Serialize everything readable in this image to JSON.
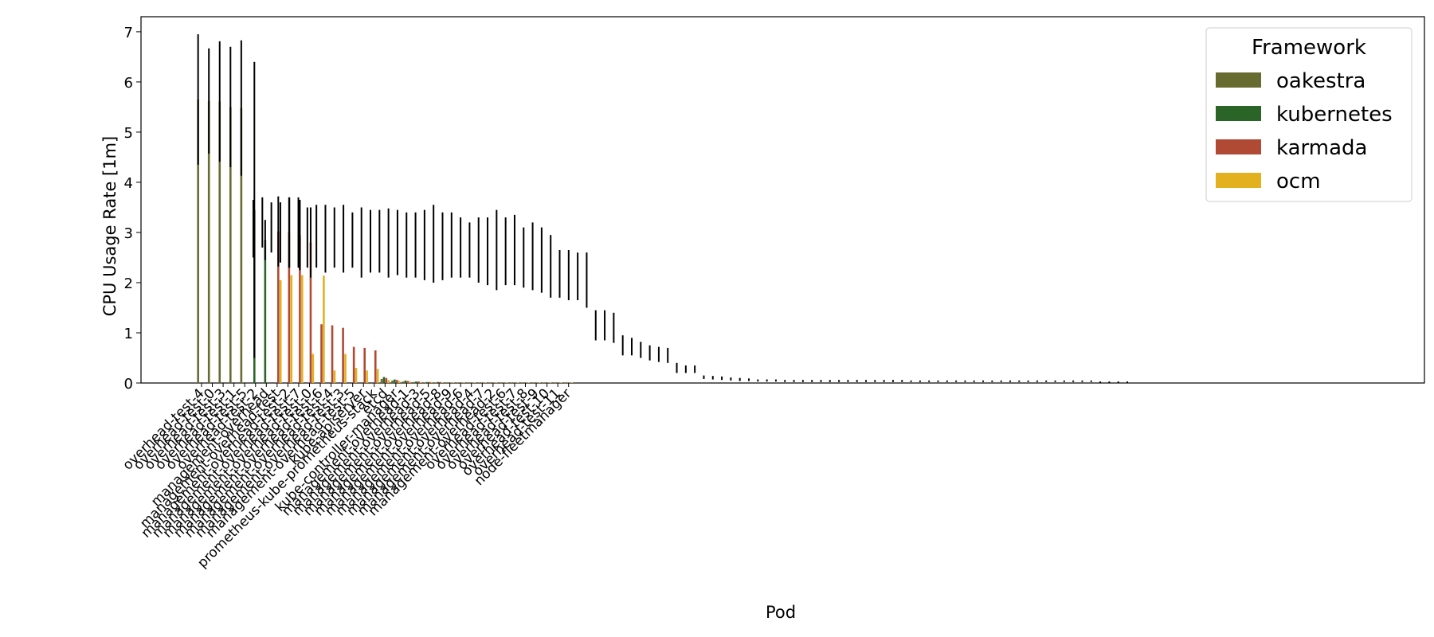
{
  "chart_data": {
    "type": "bar",
    "xlabel": "Pod",
    "ylabel": "CPU Usage Rate [1m]",
    "ylim": [
      0,
      7.3
    ],
    "yticks": [
      0,
      1,
      2,
      3,
      4,
      5,
      6,
      7
    ],
    "grid": false,
    "legend": {
      "title": "Framework",
      "placement": "top-right",
      "entries": [
        "oakestra",
        "kubernetes",
        "karmada",
        "ocm"
      ]
    },
    "colors": {
      "oakestra": "#676b2f",
      "kubernetes": "#2b6427",
      "karmada": "#b04a35",
      "ocm": "#e3b020",
      "errorbar": "#000000"
    },
    "categories": [
      "overhead-test-4",
      "overhead-test-0",
      "overhead-test-3",
      "overhead-test-1",
      "overhead-test-5",
      "overhead-test-2",
      "management-overhead",
      "management-overhead-test",
      "management-overhead-test-2",
      "management-overhead-test-7",
      "management-overhead-test-0",
      "management-overhead-test-6",
      "management-overhead-test-4",
      "management-overhead-test-3",
      "management-overhead-test-5",
      "kube-apiserver",
      "prometheus-kube-prometheus-stack",
      "etcd",
      "kube-controller-manager",
      "management-overhead-1",
      "management-overhead-3",
      "management-overhead-5",
      "management-overhead-8",
      "management-overhead-9",
      "management-overhead-6",
      "management-overhead-4",
      "management-overhead-7",
      "management-overhead-2",
      "overhead-test-6",
      "overhead-test-7",
      "overhead-test-8",
      "overhead-test-9",
      "overhead-test-10",
      "overhead-test-11",
      "node-fleetmanager"
    ],
    "series": [
      {
        "name": "oakestra",
        "values": [
          5.65,
          5.62,
          5.61,
          5.5,
          5.48,
          0,
          0,
          0,
          0,
          0,
          0,
          0,
          0,
          0,
          0,
          0,
          0,
          0.08,
          0.05,
          0.03,
          0.02,
          0.01,
          0.01,
          0.01,
          0.01,
          0.01,
          0.01,
          0.01,
          0.01,
          0.01,
          0.01,
          0.01,
          0.01,
          0.01,
          0.01
        ],
        "err": [
          1.3,
          1.05,
          1.2,
          1.2,
          1.35,
          0,
          0,
          0,
          0,
          0,
          0,
          0,
          0,
          0,
          0,
          0,
          0,
          0,
          0,
          0,
          0,
          0,
          0,
          0,
          0,
          0,
          0,
          0,
          0,
          0,
          0,
          0,
          0,
          0,
          0
        ]
      },
      {
        "name": "kubernetes",
        "values": [
          0,
          0,
          0,
          0,
          0,
          3.45,
          2.85,
          0,
          0,
          0,
          0,
          0,
          0,
          0,
          0,
          0,
          0,
          0.12,
          0.07,
          0.05,
          0.03,
          0.02,
          0.02,
          0.01,
          0.01,
          0.01,
          0.01,
          0.01,
          0.01,
          0.01,
          0.01,
          0.01,
          0.01,
          0.01,
          0.01
        ],
        "err": [
          0,
          0,
          0,
          0,
          0,
          2.95,
          0.4,
          0,
          0,
          0,
          0,
          0,
          0,
          0,
          0,
          0,
          0,
          0,
          0,
          0,
          0,
          0,
          0,
          0,
          0,
          0,
          0,
          0,
          0,
          0,
          0,
          0,
          0,
          0,
          0
        ]
      },
      {
        "name": "karmada",
        "values": [
          0,
          0,
          0,
          0,
          0,
          0,
          0,
          3.02,
          3.0,
          2.95,
          2.8,
          1.17,
          1.15,
          1.1,
          0.72,
          0.7,
          0.65,
          0.1,
          0.06,
          0.04,
          0.03,
          0.02,
          0.02,
          0.01,
          0.01,
          0.01,
          0.01,
          0.01,
          0.01,
          0.01,
          0.01,
          0.01,
          0.01,
          0.01,
          0.01
        ],
        "err": [
          0,
          0,
          0,
          0,
          0,
          0,
          0,
          0.7,
          0.7,
          0.7,
          0.7,
          0,
          0,
          0,
          0,
          0,
          0,
          0,
          0,
          0,
          0,
          0,
          0,
          0,
          0,
          0,
          0,
          0,
          0,
          0,
          0,
          0,
          0,
          0,
          0
        ]
      },
      {
        "name": "ocm",
        "values": [
          0,
          0,
          0,
          0,
          0,
          0,
          0,
          2.05,
          2.15,
          2.15,
          0.58,
          2.14,
          0.25,
          0.58,
          0.3,
          0.25,
          0.28,
          0.06,
          0.04,
          0.03,
          0.02,
          0.02,
          0.01,
          0.01,
          0.01,
          0.01,
          0.01,
          0.01,
          0.01,
          0.01,
          0.01,
          0.01,
          0.01,
          0.01,
          0.01
        ],
        "err": [
          0,
          0,
          0,
          0,
          0,
          0,
          0,
          0,
          0,
          0,
          0,
          0,
          0,
          0,
          0,
          0,
          0,
          0,
          0,
          0,
          0,
          0,
          0,
          0,
          0,
          0,
          0,
          0,
          0,
          0,
          0,
          0,
          0,
          0,
          0
        ]
      }
    ],
    "extra_errorbars": [
      [
        2.5,
        3.65
      ],
      [
        2.7,
        3.7
      ],
      [
        2.6,
        3.6
      ],
      [
        2.4,
        3.6
      ],
      [
        2.3,
        3.7
      ],
      [
        2.3,
        3.7
      ],
      [
        2.3,
        3.5
      ],
      [
        2.3,
        3.55
      ],
      [
        2.2,
        3.55
      ],
      [
        2.3,
        3.5
      ],
      [
        2.2,
        3.55
      ],
      [
        2.3,
        3.4
      ],
      [
        2.1,
        3.5
      ],
      [
        2.2,
        3.45
      ],
      [
        2.2,
        3.45
      ],
      [
        2.1,
        3.48
      ],
      [
        2.15,
        3.45
      ],
      [
        2.1,
        3.4
      ],
      [
        2.1,
        3.4
      ],
      [
        2.05,
        3.45
      ],
      [
        2.0,
        3.55
      ],
      [
        2.05,
        3.4
      ],
      [
        2.1,
        3.4
      ],
      [
        2.1,
        3.3
      ],
      [
        2.1,
        3.2
      ],
      [
        2.0,
        3.3
      ],
      [
        1.95,
        3.3
      ],
      [
        1.85,
        3.45
      ],
      [
        1.95,
        3.3
      ],
      [
        1.95,
        3.35
      ],
      [
        1.9,
        3.1
      ],
      [
        1.85,
        3.2
      ],
      [
        1.8,
        3.1
      ],
      [
        1.7,
        2.95
      ],
      [
        1.7,
        2.65
      ],
      [
        1.65,
        2.65
      ],
      [
        1.65,
        2.6
      ],
      [
        1.5,
        2.6
      ],
      [
        0.85,
        1.45
      ],
      [
        0.85,
        1.45
      ],
      [
        0.8,
        1.4
      ],
      [
        0.55,
        0.95
      ],
      [
        0.55,
        0.9
      ],
      [
        0.5,
        0.82
      ],
      [
        0.45,
        0.75
      ],
      [
        0.42,
        0.72
      ],
      [
        0.4,
        0.7
      ],
      [
        0.2,
        0.4
      ],
      [
        0.2,
        0.35
      ],
      [
        0.2,
        0.35
      ],
      [
        0.08,
        0.15
      ],
      [
        0.07,
        0.14
      ],
      [
        0.06,
        0.13
      ],
      [
        0.05,
        0.11
      ],
      [
        0.04,
        0.1
      ],
      [
        0.04,
        0.09
      ],
      [
        0.03,
        0.07
      ],
      [
        0.03,
        0.07
      ],
      [
        0.03,
        0.07
      ],
      [
        0.02,
        0.06
      ],
      [
        0.02,
        0.06
      ],
      [
        0.02,
        0.06
      ],
      [
        0.02,
        0.06
      ],
      [
        0.02,
        0.06
      ],
      [
        0.02,
        0.06
      ],
      [
        0.02,
        0.06
      ],
      [
        0.02,
        0.06
      ],
      [
        0.02,
        0.06
      ],
      [
        0.02,
        0.06
      ],
      [
        0.02,
        0.06
      ],
      [
        0.02,
        0.06
      ],
      [
        0.02,
        0.06
      ],
      [
        0.02,
        0.06
      ],
      [
        0.02,
        0.05
      ],
      [
        0.02,
        0.05
      ],
      [
        0.02,
        0.05
      ],
      [
        0.02,
        0.05
      ],
      [
        0.02,
        0.05
      ],
      [
        0.02,
        0.05
      ],
      [
        0.02,
        0.05
      ],
      [
        0.02,
        0.05
      ],
      [
        0.02,
        0.05
      ],
      [
        0.02,
        0.05
      ],
      [
        0.02,
        0.05
      ],
      [
        0.02,
        0.05
      ],
      [
        0.02,
        0.05
      ],
      [
        0.02,
        0.05
      ],
      [
        0.02,
        0.05
      ],
      [
        0.02,
        0.05
      ],
      [
        0.02,
        0.05
      ],
      [
        0.02,
        0.05
      ],
      [
        0.02,
        0.05
      ],
      [
        0.02,
        0.05
      ],
      [
        0.02,
        0.05
      ],
      [
        0.0,
        0.03
      ],
      [
        0.0,
        0.03
      ],
      [
        0.0,
        0.03
      ],
      [
        0.0,
        0.03
      ]
    ]
  }
}
